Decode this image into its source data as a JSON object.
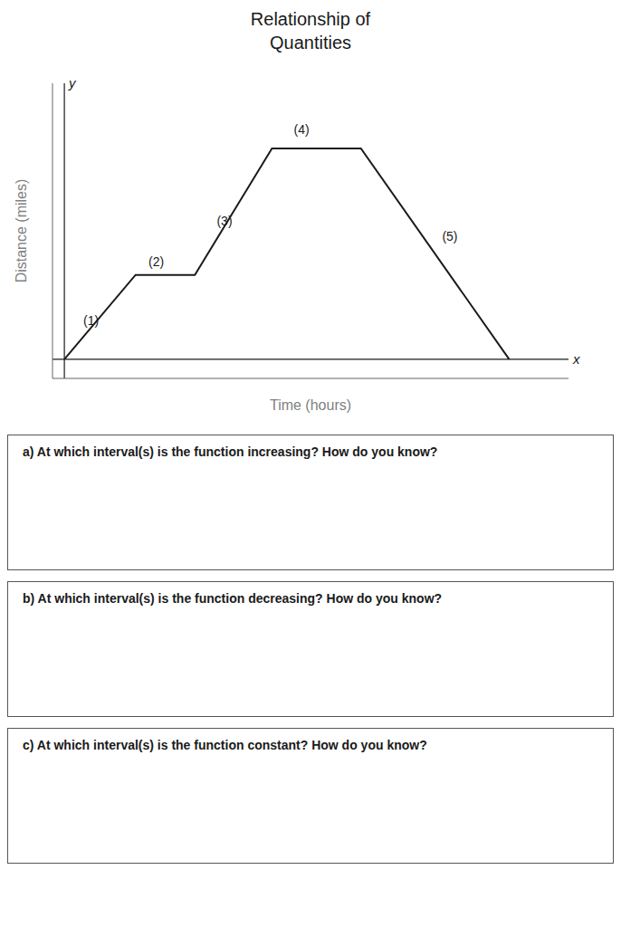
{
  "chart_data": {
    "type": "line",
    "title": "Relationship of\nQuantities",
    "xlabel": "Time (hours)",
    "ylabel": "Distance (miles)",
    "x": [
      0,
      1.2,
      2.2,
      3.5,
      5.0,
      7.5
    ],
    "values": [
      0,
      2.2,
      2.2,
      5.5,
      5.5,
      0
    ],
    "color": "#1a1a1a",
    "xlim": [
      -0.2,
      8.5
    ],
    "ylim": [
      -0.5,
      7.2
    ],
    "tick_labels": false,
    "grid": false,
    "annotations": [
      {
        "text": "(1)",
        "x": 0.45,
        "y": 1.0
      },
      {
        "text": "(2)",
        "x": 1.55,
        "y": 2.55
      },
      {
        "text": "(3)",
        "x": 2.7,
        "y": 3.6
      },
      {
        "text": "(4)",
        "x": 4.0,
        "y": 6.0
      },
      {
        "text": "(5)",
        "x": 6.5,
        "y": 3.2
      },
      {
        "text": "x",
        "x": 8.5,
        "y": 0
      },
      {
        "text": "y",
        "x": 0,
        "y": 7.2
      }
    ],
    "questions": [
      "a)  At which interval(s) is the function increasing? How do you know?",
      "b)  At which interval(s) is the function decreasing? How do you know?",
      "c)  At which interval(s) is the function constant? How do you know?"
    ]
  }
}
